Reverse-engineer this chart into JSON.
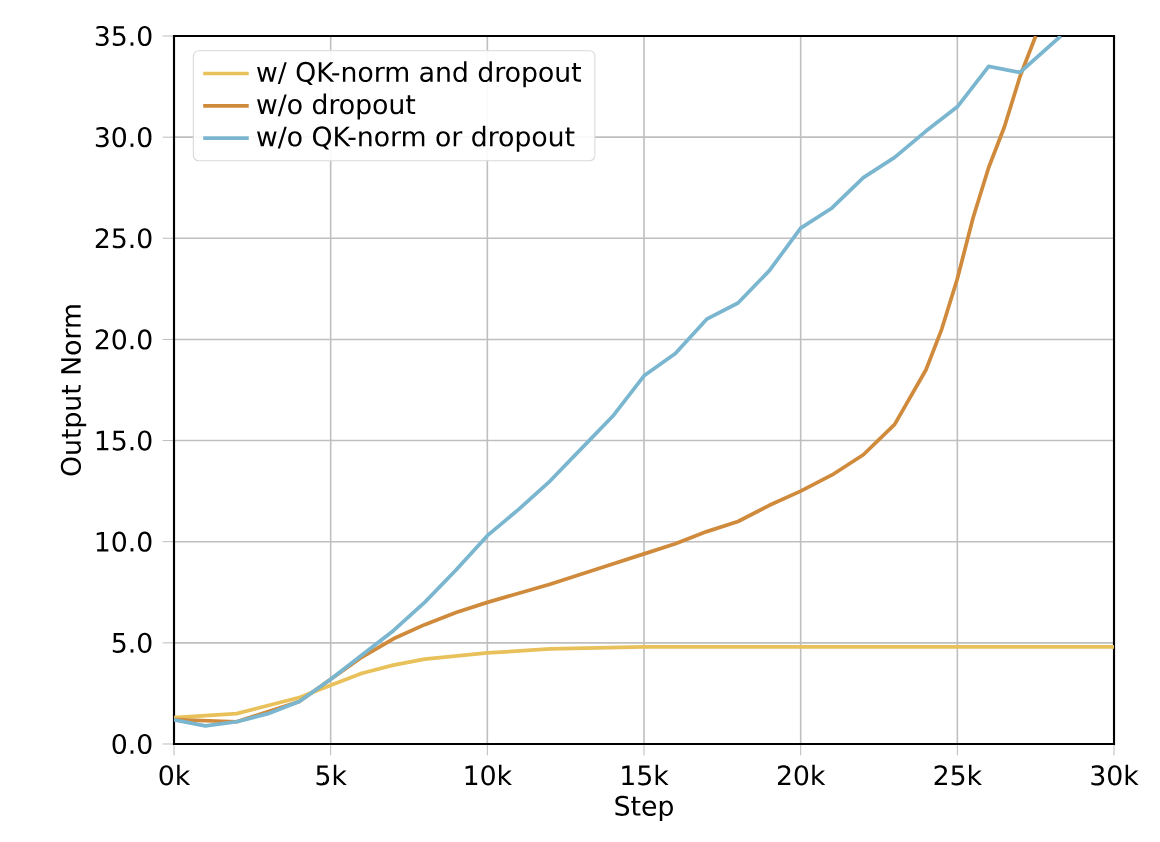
{
  "chart_data": {
    "type": "line",
    "xlabel": "Step",
    "ylabel": "Output Norm",
    "xlim": [
      0,
      30000
    ],
    "ylim": [
      0,
      35
    ],
    "xticks": [
      {
        "value": 0,
        "label": "0k"
      },
      {
        "value": 5000,
        "label": "5k"
      },
      {
        "value": 10000,
        "label": "10k"
      },
      {
        "value": 15000,
        "label": "15k"
      },
      {
        "value": 20000,
        "label": "20k"
      },
      {
        "value": 25000,
        "label": "25k"
      },
      {
        "value": 30000,
        "label": "30k"
      }
    ],
    "yticks": [
      {
        "value": 0,
        "label": "0.0"
      },
      {
        "value": 5,
        "label": "5.0"
      },
      {
        "value": 10,
        "label": "10.0"
      },
      {
        "value": 15,
        "label": "15.0"
      },
      {
        "value": 20,
        "label": "20.0"
      },
      {
        "value": 25,
        "label": "25.0"
      },
      {
        "value": 30,
        "label": "30.0"
      },
      {
        "value": 35,
        "label": "35.0"
      }
    ],
    "grid": true,
    "legend": "top left",
    "series": [
      {
        "name": "w/ QK-norm and dropout",
        "color": "#e8c15a",
        "x": [
          0,
          2000,
          4000,
          5000,
          6000,
          7000,
          8000,
          10000,
          12000,
          15000,
          20000,
          25000,
          30000
        ],
        "values": [
          1.3,
          1.5,
          2.3,
          2.9,
          3.5,
          3.9,
          4.2,
          4.5,
          4.7,
          4.8,
          4.8,
          4.8,
          4.8
        ]
      },
      {
        "name": "w/o dropout",
        "color": "#d08a3c",
        "x": [
          0,
          2000,
          4000,
          5000,
          6000,
          7000,
          8000,
          9000,
          10000,
          12000,
          14000,
          15000,
          16000,
          17000,
          18000,
          19000,
          20000,
          21000,
          22000,
          23000,
          24000,
          24500,
          25000,
          25500,
          26000,
          26500,
          27000,
          27500
        ],
        "values": [
          1.2,
          1.1,
          2.1,
          3.2,
          4.3,
          5.2,
          5.9,
          6.5,
          7.0,
          7.9,
          8.9,
          9.4,
          9.9,
          10.5,
          11.0,
          11.8,
          12.5,
          13.3,
          14.3,
          15.8,
          18.5,
          20.5,
          23.0,
          26.0,
          28.5,
          30.5,
          33.0,
          35.0
        ]
      },
      {
        "name": "w/o QK-norm or dropout",
        "color": "#7ab6cf",
        "x": [
          0,
          1000,
          2000,
          3000,
          4000,
          5000,
          6000,
          7000,
          8000,
          9000,
          10000,
          11000,
          12000,
          13000,
          14000,
          15000,
          16000,
          17000,
          18000,
          19000,
          20000,
          21000,
          22000,
          23000,
          24000,
          25000,
          26000,
          27000,
          28300
        ],
        "values": [
          1.2,
          0.9,
          1.1,
          1.5,
          2.1,
          3.2,
          4.4,
          5.6,
          7.0,
          8.6,
          10.3,
          11.6,
          13.0,
          14.6,
          16.2,
          18.2,
          19.3,
          21.0,
          21.8,
          23.4,
          25.5,
          26.5,
          28.0,
          29.0,
          30.3,
          31.5,
          33.5,
          33.2,
          35.0
        ]
      }
    ]
  }
}
